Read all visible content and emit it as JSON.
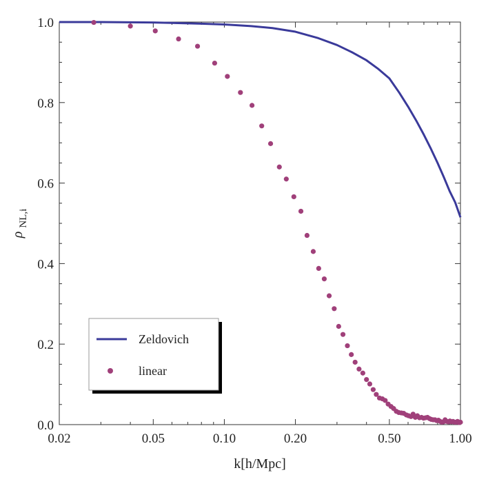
{
  "chart_data": {
    "type": "scatter",
    "title": "",
    "xlabel": "k[h/Mpc]",
    "ylabel": "ρ",
    "ylabel_subscript": "NL,i",
    "xscale": "log",
    "xlim": [
      0.02,
      1.0
    ],
    "ylim": [
      0.0,
      1.0
    ],
    "x_ticks": [
      0.02,
      0.05,
      0.1,
      0.2,
      0.5,
      1.0
    ],
    "x_tick_labels": [
      "0.02",
      "0.05",
      "0.10",
      "0.20",
      "0.50",
      "1.00"
    ],
    "y_ticks": [
      0.0,
      0.2,
      0.4,
      0.6,
      0.8,
      1.0
    ],
    "y_tick_labels": [
      "0.0",
      "0.2",
      "0.4",
      "0.6",
      "0.8",
      "1.0"
    ],
    "legend_position": "bottom-left",
    "series": [
      {
        "name": "Zeldovich",
        "style": "line",
        "color": "#3a3a9a",
        "x": [
          0.02,
          0.03,
          0.05,
          0.08,
          0.1,
          0.13,
          0.16,
          0.2,
          0.25,
          0.3,
          0.35,
          0.4,
          0.45,
          0.5,
          0.55,
          0.6,
          0.65,
          0.7,
          0.75,
          0.8,
          0.85,
          0.9,
          0.95,
          1.0
        ],
        "y": [
          1.0,
          1.0,
          0.999,
          0.996,
          0.994,
          0.99,
          0.985,
          0.976,
          0.96,
          0.943,
          0.924,
          0.905,
          0.883,
          0.86,
          0.825,
          0.79,
          0.755,
          0.72,
          0.685,
          0.65,
          0.615,
          0.58,
          0.552,
          0.515
        ]
      },
      {
        "name": "linear",
        "style": "points",
        "color": "#a0407a",
        "x": [
          0.028,
          0.04,
          0.051,
          0.064,
          0.077,
          0.091,
          0.103,
          0.117,
          0.131,
          0.144,
          0.157,
          0.171,
          0.183,
          0.197,
          0.211,
          0.224,
          0.238,
          0.251,
          0.265,
          0.278,
          0.292,
          0.305,
          0.318,
          0.332,
          0.345,
          0.358,
          0.372,
          0.386,
          0.4,
          0.413,
          0.427,
          0.44,
          0.454,
          0.467,
          0.48,
          0.494,
          0.508,
          0.521,
          0.535,
          0.548,
          0.562,
          0.575,
          0.59,
          0.603,
          0.617,
          0.63,
          0.644,
          0.657,
          0.671,
          0.684,
          0.698,
          0.712,
          0.725,
          0.739,
          0.752,
          0.766,
          0.78,
          0.793,
          0.807,
          0.82,
          0.834,
          0.847,
          0.861,
          0.875,
          0.888,
          0.902,
          0.916,
          0.93,
          0.944,
          0.958,
          0.972,
          0.986,
          1.0
        ],
        "y": [
          0.999,
          0.99,
          0.978,
          0.958,
          0.94,
          0.898,
          0.865,
          0.825,
          0.793,
          0.742,
          0.698,
          0.64,
          0.61,
          0.566,
          0.53,
          0.47,
          0.43,
          0.388,
          0.362,
          0.32,
          0.288,
          0.244,
          0.224,
          0.196,
          0.174,
          0.155,
          0.138,
          0.128,
          0.112,
          0.101,
          0.087,
          0.075,
          0.066,
          0.064,
          0.06,
          0.051,
          0.045,
          0.04,
          0.033,
          0.03,
          0.029,
          0.028,
          0.024,
          0.022,
          0.02,
          0.026,
          0.018,
          0.022,
          0.017,
          0.018,
          0.016,
          0.017,
          0.018,
          0.015,
          0.013,
          0.012,
          0.012,
          0.01,
          0.011,
          0.008,
          0.006,
          0.007,
          0.012,
          0.008,
          0.007,
          0.009,
          0.007,
          0.008,
          0.006,
          0.006,
          0.008,
          0.005,
          0.006
        ]
      }
    ]
  }
}
